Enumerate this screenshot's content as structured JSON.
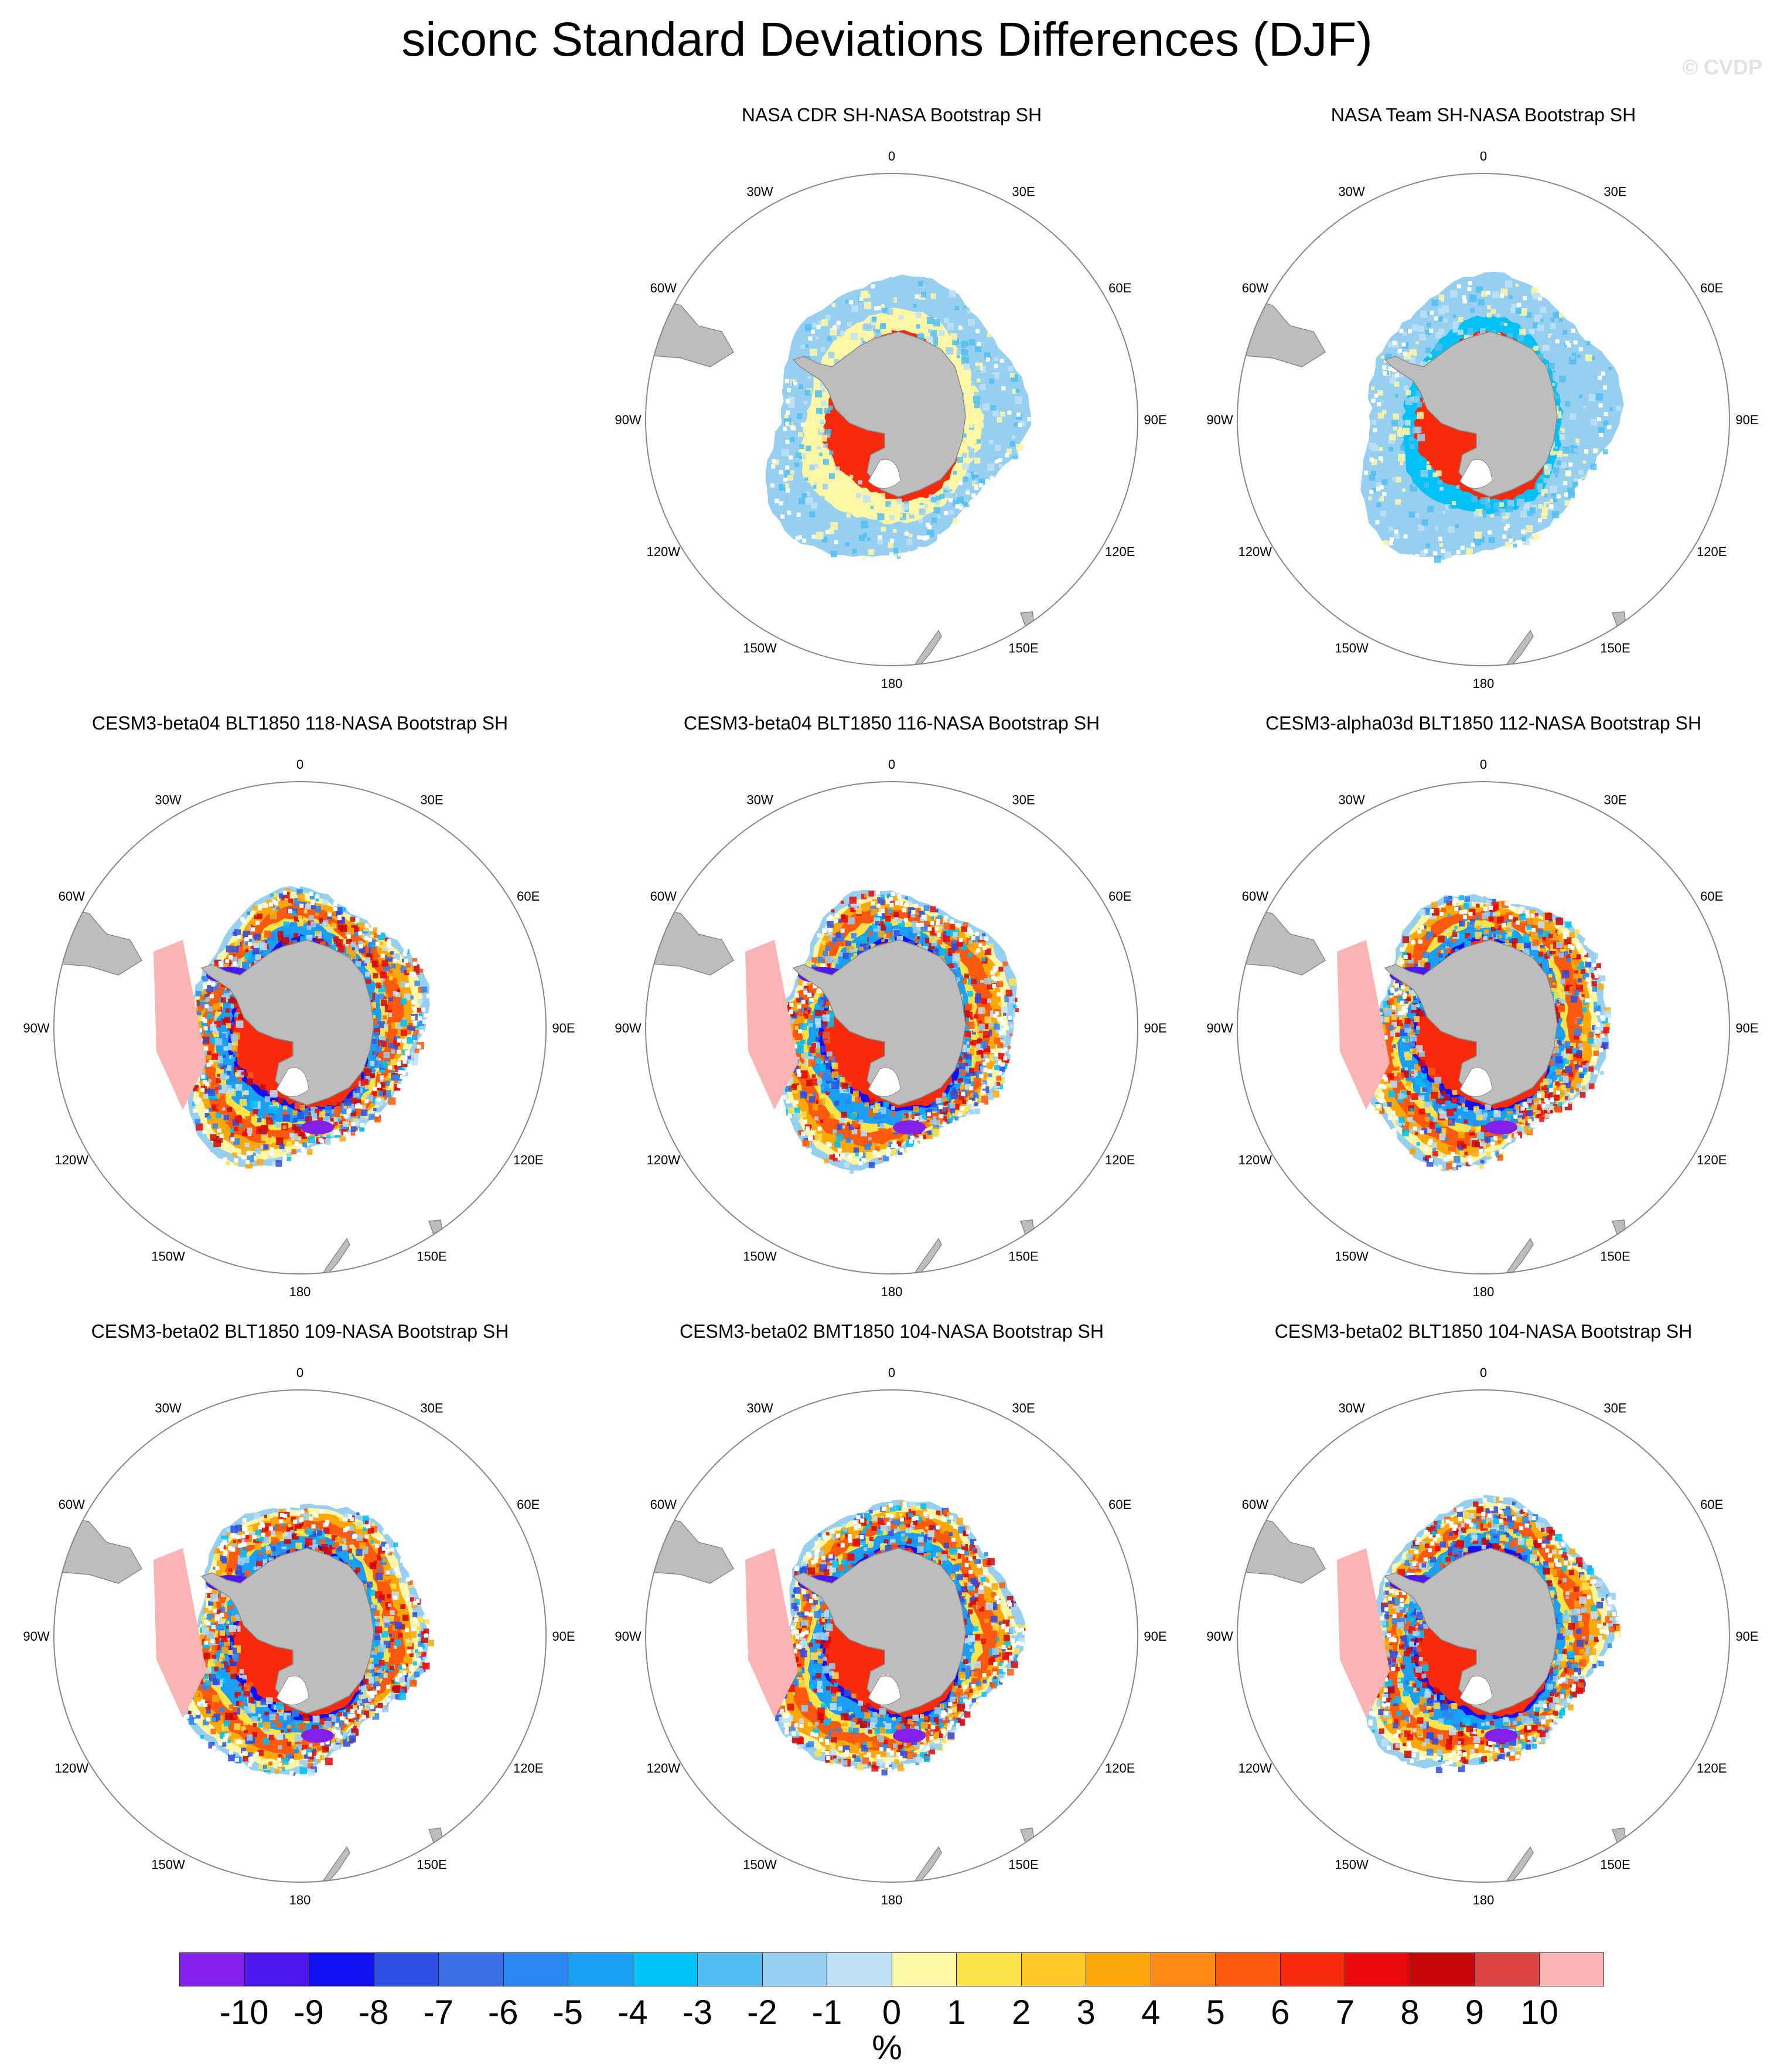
{
  "title": "siconc Standard Deviations Differences (DJF)",
  "watermark": "© CVDP",
  "lon_labels": [
    "0",
    "30E",
    "60E",
    "90E",
    "120E",
    "150E",
    "180",
    "150W",
    "120W",
    "90W",
    "60W",
    "30W"
  ],
  "panels": [
    {
      "title": "NASA CDR SH-NASA Bootstrap SH",
      "type": "obs",
      "variant": "cdr"
    },
    {
      "title": "NASA Team SH-NASA Bootstrap SH",
      "type": "obs",
      "variant": "team"
    },
    {
      "title": "CESM3-beta04 BLT1850 118-NASA Bootstrap SH",
      "type": "model",
      "variant": "a"
    },
    {
      "title": "CESM3-beta04 BLT1850 116-NASA Bootstrap SH",
      "type": "model",
      "variant": "b"
    },
    {
      "title": "CESM3-alpha03d BLT1850 112-NASA Bootstrap SH",
      "type": "model",
      "variant": "c"
    },
    {
      "title": "CESM3-beta02 BLT1850 109-NASA Bootstrap SH",
      "type": "model",
      "variant": "d"
    },
    {
      "title": "CESM3-beta02 BMT1850 104-NASA Bootstrap SH",
      "type": "model",
      "variant": "e"
    },
    {
      "title": "CESM3-beta02 BLT1850 104-NASA Bootstrap SH",
      "type": "model",
      "variant": "f"
    }
  ],
  "colorbar": {
    "colors": [
      "#8120ea",
      "#4d18ec",
      "#1010f0",
      "#2c4ee0",
      "#3a6ee6",
      "#2a86f2",
      "#1a9ff5",
      "#00c0f6",
      "#50bef0",
      "#97cff0",
      "#bde2f6",
      "#fff7a5",
      "#fde34a",
      "#fdc828",
      "#fca80a",
      "#fc8a14",
      "#fb5a0e",
      "#f82a0c",
      "#e80808",
      "#c80808",
      "#dc4444",
      "#fbb4b4"
    ],
    "labels": [
      "-10",
      "-9",
      "-8",
      "-7",
      "-6",
      "-5",
      "-4",
      "-3",
      "-2",
      "-1",
      "0",
      "1",
      "2",
      "3",
      "4",
      "5",
      "6",
      "7",
      "8",
      "9",
      "10"
    ],
    "units": "%"
  }
}
